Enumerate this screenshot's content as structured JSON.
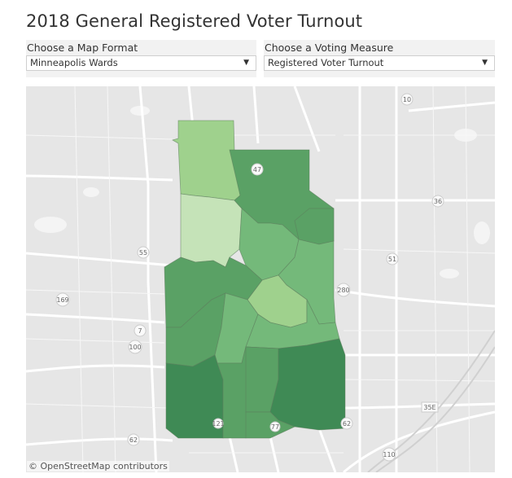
{
  "title": "2018 General Registered Voter Turnout",
  "map_format": {
    "label": "Choose a Map Format",
    "selected": "Minneapolis Wards"
  },
  "voting_measure": {
    "label": "Choose a Voting Measure",
    "selected": "Registered Voter Turnout"
  },
  "map": {
    "attribution": "© OpenStreetMap contributors",
    "highway_shields": [
      "10",
      "47",
      "36",
      "55",
      "51",
      "280",
      "169",
      "7",
      "100",
      "35E",
      "62",
      "110",
      "62",
      "77",
      "121"
    ],
    "colors": {
      "lightest": "#c5e3b8",
      "light": "#9fd18d",
      "mid": "#74b97a",
      "dark": "#5aa165",
      "darkest": "#3f8a55",
      "background": "#e8e8e8",
      "road": "#ffffff"
    }
  }
}
